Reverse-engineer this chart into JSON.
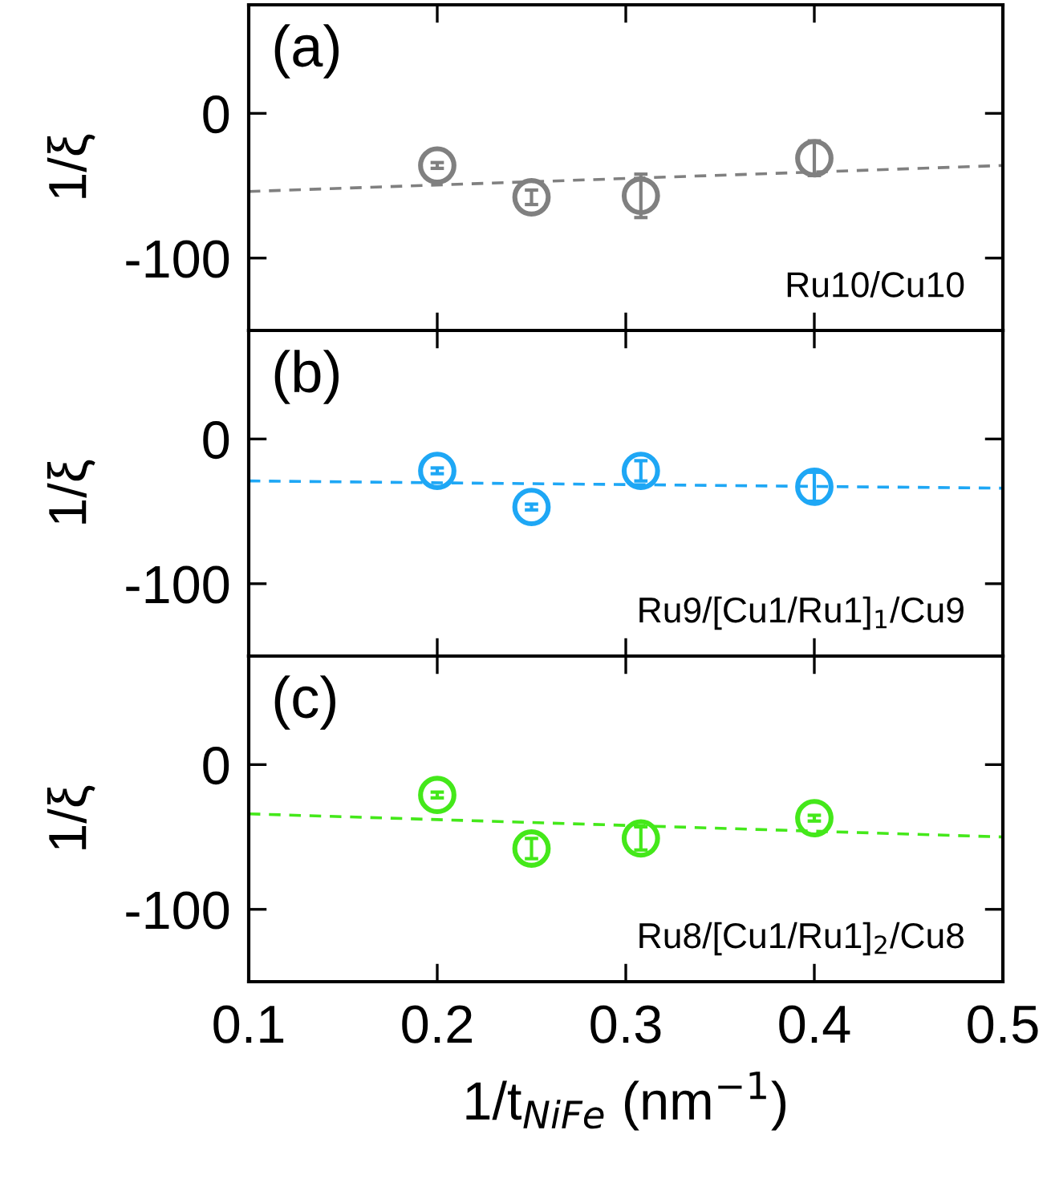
{
  "chart_data": [
    {
      "type": "scatter",
      "ylabel": "1/ξ",
      "xlim": [
        0.1,
        0.5
      ],
      "ylim": [
        -150,
        75
      ],
      "xticks": [
        0.1,
        0.2,
        0.3,
        0.4,
        0.5
      ],
      "yticks": [
        0,
        -100
      ],
      "tick_labels": "y",
      "annotations": [
        "(a)",
        "Ru10/Cu10"
      ],
      "series": [
        {
          "color": "#808080",
          "marker": "circle",
          "x": [
            0.2,
            0.25,
            0.308,
            0.4
          ],
          "values": [
            -36,
            -58,
            -57,
            -31
          ],
          "errors": [
            2,
            5,
            15,
            12
          ]
        },
        {
          "type": "line",
          "color": "#808080",
          "line_style": "dashed",
          "x": [
            0.1,
            0.5
          ],
          "values": [
            -54,
            -36
          ]
        }
      ]
    },
    {
      "type": "scatter",
      "ylabel": "1/ξ",
      "xlim": [
        0.1,
        0.5
      ],
      "ylim": [
        -150,
        75
      ],
      "xticks": [
        0.1,
        0.2,
        0.3,
        0.4,
        0.5
      ],
      "yticks": [
        0,
        -100
      ],
      "tick_labels": "y",
      "annotations": [
        "(b)",
        "Ru9/[Cu1/Ru1]$_{1}$/Cu9"
      ],
      "series": [
        {
          "color": "#1ea7f5",
          "marker": "circle",
          "x": [
            0.2,
            0.25,
            0.308,
            0.4
          ],
          "values": [
            -22,
            -47,
            -22,
            -33
          ],
          "errors": [
            2,
            2,
            7,
            10
          ]
        },
        {
          "type": "line",
          "color": "#1ea7f5",
          "line_style": "dashed",
          "x": [
            0.1,
            0.5
          ],
          "values": [
            -29,
            -34
          ]
        }
      ]
    },
    {
      "type": "scatter",
      "ylabel": "1/ξ",
      "xlabel": "1/t$_{NiFe}$ (nm$^{−1}$)",
      "xlim": [
        0.1,
        0.5
      ],
      "ylim": [
        -150,
        75
      ],
      "xticks": [
        0.1,
        0.2,
        0.3,
        0.4,
        0.5
      ],
      "yticks": [
        0,
        -100
      ],
      "annotations": [
        "(c)",
        "Ru8/[Cu1/Ru1]$_{2}$/Cu8"
      ],
      "series": [
        {
          "color": "#44e81a",
          "marker": "circle",
          "x": [
            0.2,
            0.25,
            0.308,
            0.4
          ],
          "values": [
            -21,
            -58,
            -51,
            -37
          ],
          "errors": [
            2,
            7,
            8,
            2
          ]
        },
        {
          "type": "line",
          "color": "#44e81a",
          "line_style": "dashed",
          "x": [
            0.1,
            0.5
          ],
          "values": [
            -34,
            -50
          ]
        }
      ]
    }
  ]
}
